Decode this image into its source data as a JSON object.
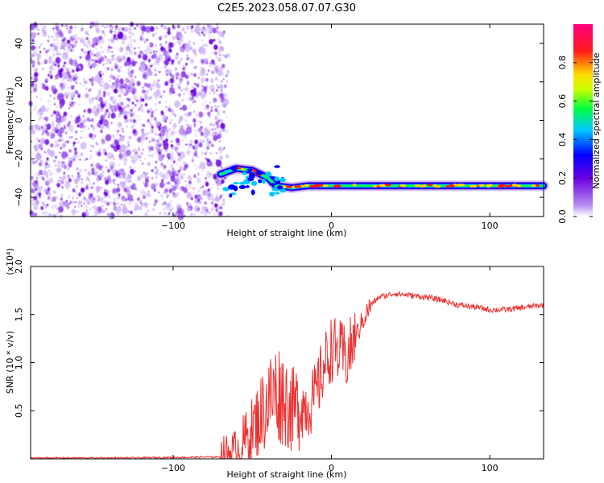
{
  "title": "C2E5.2023.058.07.07.G30",
  "chart_data": [
    {
      "type": "heatmap",
      "xlabel": "Height of straight line (km)",
      "ylabel": "Frequency (Hz)",
      "xlim": [
        -190,
        134
      ],
      "ylim": [
        -50,
        50
      ],
      "x_ticks": [
        -100,
        0,
        100
      ],
      "y_ticks": [
        -40,
        -20,
        0,
        20,
        40
      ],
      "grid": false,
      "colorbar": {
        "label": "Normalized spectral amplitude",
        "range": [
          0,
          1
        ],
        "ticks": [
          "0.0",
          "0.2",
          "0.4",
          "0.6",
          "0.8"
        ],
        "colormap": [
          "#ffffff",
          "#6a00e0",
          "#0000ff",
          "#00c8ff",
          "#00ff40",
          "#c8ff00",
          "#ffdc00",
          "#ff1a1a",
          "#ff0080"
        ]
      },
      "signal_track": {
        "x": [
          -70,
          -60,
          -50,
          -40,
          -35,
          -25,
          -15,
          0,
          20,
          40,
          60,
          80,
          100,
          120,
          134
        ],
        "y": [
          -28,
          -25,
          -26,
          -30,
          -34,
          -35,
          -34,
          -34,
          -34,
          -34,
          -34,
          -34,
          -34,
          -34,
          -34
        ]
      }
    },
    {
      "type": "line",
      "xlabel": "Height of straight line (km)",
      "ylabel": "SNR (10 * v/v)",
      "y_multiplier": "(x10⁴)",
      "xlim": [
        -190,
        134
      ],
      "ylim": [
        0,
        2.0
      ],
      "x_ticks": [
        -100,
        0,
        100
      ],
      "y_ticks": [
        "0.5",
        "1.0",
        "1.5",
        "2.0"
      ],
      "color": "#ee3030",
      "grid": false,
      "series": [
        {
          "x": [
            -190,
            -130,
            -70,
            -60,
            -50,
            -45,
            -40,
            -35,
            -30,
            -25,
            -20,
            -15,
            -10,
            -5,
            0,
            5,
            10,
            15,
            20,
            25,
            30,
            40,
            50,
            60,
            70,
            80,
            90,
            100,
            110,
            120,
            134
          ],
          "y": [
            0.01,
            0.01,
            0.02,
            0.08,
            0.3,
            0.45,
            0.6,
            0.7,
            0.65,
            0.5,
            0.55,
            0.55,
            0.65,
            0.95,
            1.15,
            1.1,
            1.05,
            1.25,
            1.45,
            1.6,
            1.68,
            1.72,
            1.7,
            1.68,
            1.65,
            1.6,
            1.58,
            1.55,
            1.55,
            1.57,
            1.6
          ]
        }
      ]
    }
  ]
}
